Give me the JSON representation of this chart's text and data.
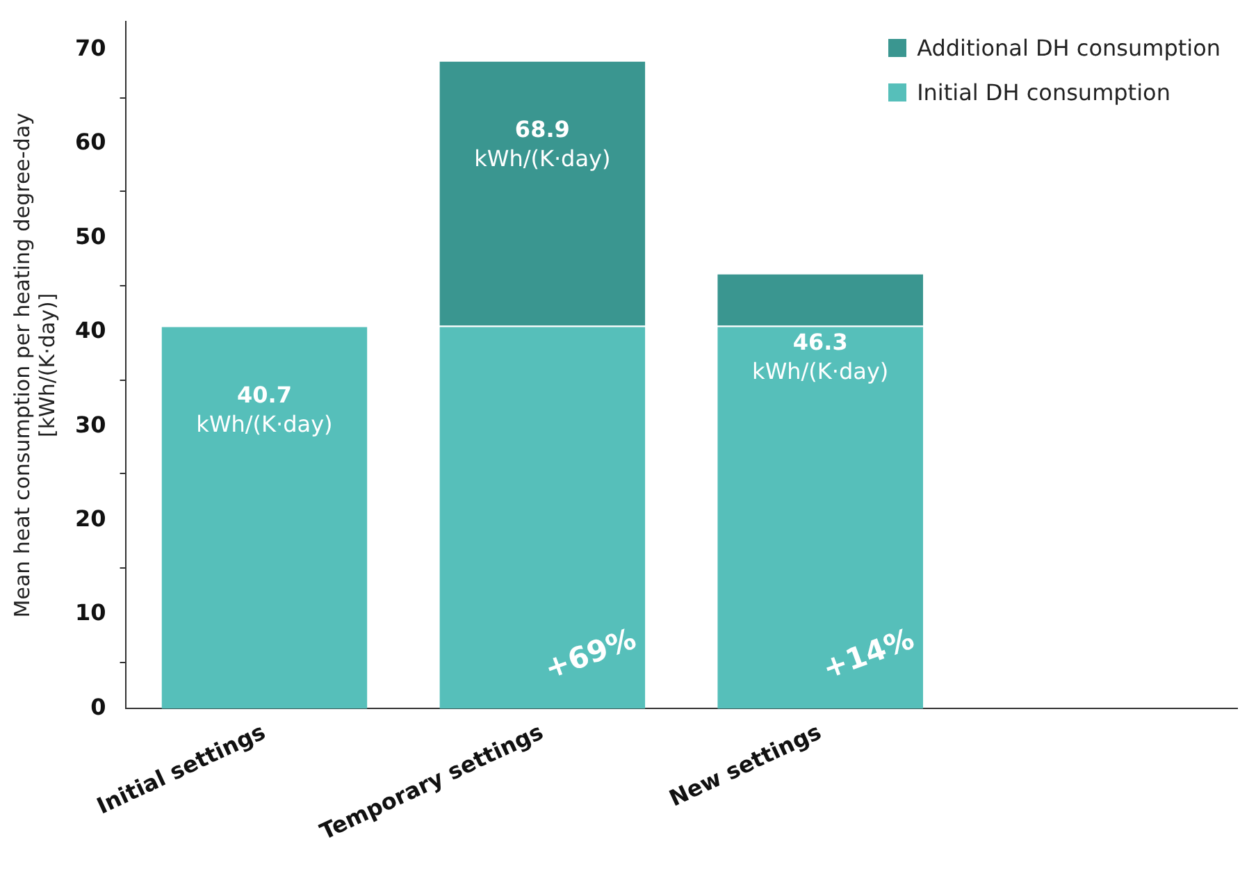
{
  "chart_data": {
    "type": "bar",
    "stacked": true,
    "ylabel": "Mean heat consumption per heating degree-day\n[kWh/(K·day)]",
    "categories": [
      "Initial settings",
      "Temporary settings",
      "New settings",
      null
    ],
    "series": [
      {
        "name": "Initial DH consumption",
        "color": "#56bfba",
        "values": [
          40.7,
          40.7,
          40.7,
          null
        ]
      },
      {
        "name": "Additional DH consumption",
        "color": "#3a9690",
        "values": [
          null,
          28.2,
          5.6,
          null
        ]
      }
    ],
    "ylim": [
      0,
      73
    ],
    "yticks": [
      0,
      10,
      20,
      30,
      40,
      50,
      60,
      70
    ],
    "grid": false,
    "legend": "top right",
    "totals": [
      "40.7\nkWh/(K·day)",
      "68.9\nkWh/(K·day)",
      "46.3\nkWh/(K·day)",
      null
    ],
    "annotations": [
      "+69%",
      "+14%"
    ]
  }
}
